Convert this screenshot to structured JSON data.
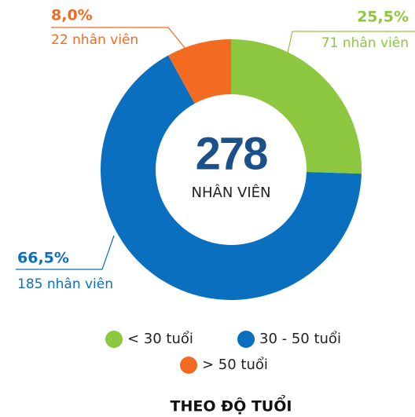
{
  "chart_data": {
    "type": "donut",
    "title": "THEO ĐỘ TUỔI",
    "center_value": 278,
    "center_label": "NHÂN VIÊN",
    "categories": [
      "< 30 tuổi",
      "30 - 50 tuổi",
      "> 50 tuổi"
    ],
    "values": [
      25.5,
      66.5,
      8.0
    ],
    "value_labels": [
      "25,5%",
      "66,5%",
      "8,0%"
    ],
    "count_labels": [
      "71 nhân viên",
      "185 nhân viên",
      "22 nhân viên"
    ],
    "colors": [
      "#8dc63f",
      "#0b6fc0",
      "#f26b21"
    ]
  }
}
